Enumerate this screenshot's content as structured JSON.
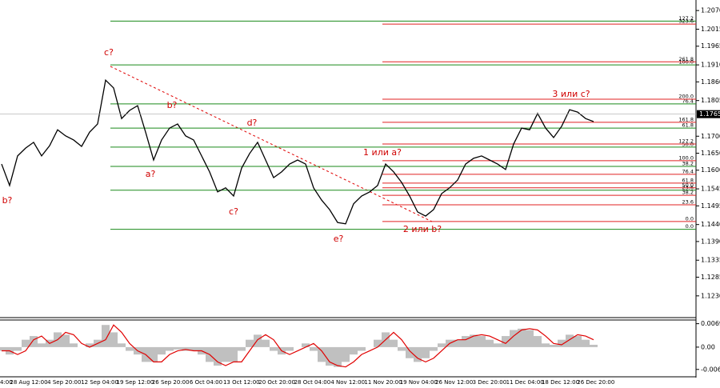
{
  "chart_data": [
    {
      "type": "line",
      "x_labels": [
        "4:00",
        "28 Aug 12:00",
        "4 Sep 20:00",
        "12 Sep 04:00",
        "19 Sep 12:00",
        "26 Sep 20:00",
        "6 Oct 04:00",
        "13 Oct 12:00",
        "20 Oct 20:00",
        "28 Oct 04:00",
        "4 Nov 12:00",
        "11 Nov 20:00",
        "19 Nov 04:00",
        "26 Nov 12:00",
        "3 Dec 20:00",
        "11 Dec 04:00",
        "18 Dec 12:00",
        "26 Dec 20:00"
      ],
      "series": [
        {
          "color": "#000000",
          "values": [
            1.1618,
            1.1555,
            1.1642,
            1.1665,
            1.1682,
            1.1642,
            1.1672,
            1.1719,
            1.1701,
            1.1689,
            1.167,
            1.1712,
            1.1736,
            1.1865,
            1.1842,
            1.1752,
            1.1776,
            1.179,
            1.1712,
            1.163,
            1.1689,
            1.1724,
            1.1736,
            1.1701,
            1.1689,
            1.1642,
            1.1595,
            1.1536,
            1.1548,
            1.1524,
            1.1606,
            1.1649,
            1.1682,
            1.163,
            1.1578,
            1.1595,
            1.1618,
            1.163,
            1.1618,
            1.1548,
            1.1512,
            1.1484,
            1.1446,
            1.1442,
            1.1501,
            1.1524,
            1.1536,
            1.1555,
            1.1618,
            1.1595,
            1.1564,
            1.1524,
            1.1477,
            1.1465,
            1.1484,
            1.1531,
            1.1548,
            1.1571,
            1.1618,
            1.1635,
            1.1642,
            1.163,
            1.1618,
            1.1602,
            1.1677,
            1.1724,
            1.1719,
            1.1767,
            1.1724,
            1.1696,
            1.1729,
            1.1778,
            1.1771,
            1.1752,
            1.1743
          ]
        }
      ],
      "ylim": [
        1.1166,
        1.2101
      ],
      "yticks": [
        {
          "value": 1.207,
          "label": "1.2070"
        },
        {
          "value": 1.2015,
          "label": "1.2015"
        },
        {
          "value": 1.1965,
          "label": "1.1965"
        },
        {
          "value": 1.191,
          "label": "1.1910"
        },
        {
          "value": 1.186,
          "label": "1.1860"
        },
        {
          "value": 1.1805,
          "label": "1.1805"
        },
        {
          "value": 1.17,
          "label": "1.1700"
        },
        {
          "value": 1.165,
          "label": "1.1650"
        },
        {
          "value": 1.16,
          "label": "1.1600"
        },
        {
          "value": 1.1545,
          "label": "1.1545"
        },
        {
          "value": 1.1495,
          "label": "1.1495"
        },
        {
          "value": 1.144,
          "label": "1.1440"
        },
        {
          "value": 1.139,
          "label": "1.1390"
        },
        {
          "value": 1.1335,
          "label": "1.1335"
        },
        {
          "value": 1.1285,
          "label": "1.1285"
        },
        {
          "value": 1.123,
          "label": "1.1230"
        }
      ],
      "last_price": {
        "value": 1.1765,
        "label": "1.1765"
      },
      "levels_green": [
        {
          "label": "127.2",
          "value": 1.2039
        },
        {
          "label": "100.0",
          "value": 1.191
        },
        {
          "label": "76.4",
          "value": 1.1795
        },
        {
          "label": "61.8",
          "value": 1.1724
        },
        {
          "label": "50.0",
          "value": 1.1668
        },
        {
          "label": "38.2",
          "value": 1.1611
        },
        {
          "label": "23.6",
          "value": 1.1541
        },
        {
          "label": "0.0",
          "value": 1.1426
        }
      ],
      "levels_red": [
        {
          "label": "323.6",
          "value": 1.203
        },
        {
          "label": "261.8",
          "value": 1.1919
        },
        {
          "label": "200.0",
          "value": 1.1809
        },
        {
          "label": "161.8",
          "value": 1.1741
        },
        {
          "label": "127.2",
          "value": 1.1677
        },
        {
          "label": "100.0",
          "value": 1.1628
        },
        {
          "label": "76.4",
          "value": 1.1588
        },
        {
          "label": "61.8",
          "value": 1.1562
        },
        {
          "label": "50.0",
          "value": 1.1548
        },
        {
          "label": "38.2",
          "value": 1.1526
        },
        {
          "label": "23.6",
          "value": 1.1498
        },
        {
          "label": "0.0",
          "value": 1.1449
        }
      ],
      "annotations": [
        "b?",
        "c?",
        "b?",
        "a?",
        "d?",
        "c?",
        "e?",
        "1 или a?",
        "2 или b?",
        "3 или c?"
      ]
    },
    {
      "type": "oscillator",
      "series": [
        {
          "color": "#c0c0c0",
          "values": [
            -0.0011,
            -0.0022,
            -0.0011,
            0.0022,
            0.0033,
            0.0011,
            0.0022,
            0.0044,
            0.0037,
            0.0011,
            0,
            0.0011,
            0.0022,
            0.0066,
            0.0044,
            0.0011,
            -0.0011,
            -0.0022,
            -0.0044,
            -0.0044,
            -0.0022,
            -0.0011,
            -0.0007,
            -0.0011,
            -0.0011,
            -0.0022,
            -0.0044,
            -0.0055,
            -0.0044,
            -0.0044,
            -0.0011,
            0.0022,
            0.0037,
            0.0022,
            -0.0011,
            -0.0022,
            -0.0011,
            0,
            0.0011,
            -0.0011,
            -0.0044,
            -0.0055,
            -0.0059,
            -0.0044,
            -0.0022,
            -0.0011,
            0,
            0.0022,
            0.0044,
            0.0022,
            -0.0011,
            -0.0033,
            -0.0044,
            -0.0033,
            -0.0011,
            0.0011,
            0.0022,
            0.0022,
            0.0033,
            0.0037,
            0.0033,
            0.0022,
            0.0011,
            0.0033,
            0.0051,
            0.0055,
            0.0051,
            0.0033,
            0.0011,
            0.0007,
            0.0022,
            0.0037,
            0.0033,
            0.0022,
            0.0007
          ]
        },
        {
          "color": "#e00000",
          "values": [
            -0.0011,
            -0.0011,
            -0.0022,
            -0.0011,
            0.0022,
            0.0033,
            0.0011,
            0.0022,
            0.0044,
            0.0037,
            0.0011,
            0,
            0.0011,
            0.0022,
            0.0066,
            0.0044,
            0.0011,
            -0.0011,
            -0.0022,
            -0.0044,
            -0.0044,
            -0.0022,
            -0.0011,
            -0.0007,
            -0.0011,
            -0.0011,
            -0.0022,
            -0.0044,
            -0.0055,
            -0.0044,
            -0.0044,
            -0.0011,
            0.0022,
            0.0037,
            0.0022,
            -0.0011,
            -0.0022,
            -0.0011,
            0,
            0.0011,
            -0.0011,
            -0.0044,
            -0.0055,
            -0.0059,
            -0.0044,
            -0.0022,
            -0.0011,
            0,
            0.0022,
            0.0044,
            0.0022,
            -0.0011,
            -0.0033,
            -0.0044,
            -0.0033,
            -0.0011,
            0.0011,
            0.0022,
            0.0022,
            0.0033,
            0.0037,
            0.0033,
            0.0022,
            0.0011,
            0.0033,
            0.0051,
            0.0055,
            0.0051,
            0.0033,
            0.0011,
            0.0007,
            0.0022,
            0.0037,
            0.0033,
            0.0022
          ]
        }
      ],
      "ylim": [
        -0.00884,
        0.00808
      ],
      "yticks": [
        0.00698,
        {
          "value": 0,
          "label": "0.00"
        },
        -0.00664
      ]
    }
  ]
}
